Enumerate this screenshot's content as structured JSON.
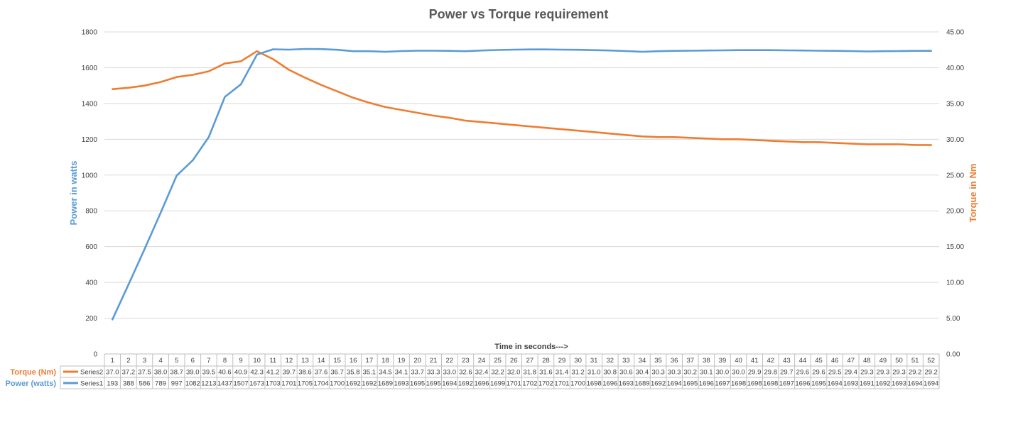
{
  "chart_data": {
    "type": "line",
    "title": "Power vs Torque requirement",
    "xlabel": "Time in seconds--->",
    "ylabel_left": "Power in watts",
    "ylabel_right": "Torque in Nm",
    "y_left_lim": [
      0,
      1800
    ],
    "y_right_lim": [
      0,
      45
    ],
    "y_left_ticks": [
      "0",
      "200",
      "400",
      "600",
      "800",
      "1000",
      "1200",
      "1400",
      "1600",
      "1800"
    ],
    "y_right_ticks": [
      "0.00",
      "5.00",
      "10.00",
      "15.00",
      "20.00",
      "25.00",
      "30.00",
      "35.00",
      "40.00",
      "45.00"
    ],
    "grid": true,
    "legend": "data-table",
    "categories": [
      "1",
      "2",
      "3",
      "4",
      "5",
      "6",
      "7",
      "8",
      "9",
      "10",
      "11",
      "12",
      "13",
      "14",
      "15",
      "16",
      "17",
      "18",
      "19",
      "20",
      "21",
      "22",
      "23",
      "24",
      "25",
      "26",
      "27",
      "28",
      "29",
      "30",
      "31",
      "32",
      "33",
      "34",
      "35",
      "36",
      "37",
      "38",
      "39",
      "40",
      "41",
      "42",
      "43",
      "44",
      "45",
      "46",
      "47",
      "48",
      "49",
      "50",
      "51",
      "52"
    ],
    "series": [
      {
        "name": "Series2",
        "row_label": "Torque (Nm)",
        "axis": "right",
        "color": "#ed7d31",
        "values": [
          37.0,
          37.2,
          37.5,
          38.0,
          38.7,
          39.0,
          39.5,
          40.6,
          40.9,
          42.3,
          41.2,
          39.7,
          38.6,
          37.6,
          36.7,
          35.8,
          35.1,
          34.5,
          34.1,
          33.7,
          33.3,
          33.0,
          32.6,
          32.4,
          32.2,
          32.0,
          31.8,
          31.6,
          31.4,
          31.2,
          31.0,
          30.8,
          30.6,
          30.4,
          30.3,
          30.3,
          30.2,
          30.1,
          30.0,
          30.0,
          29.9,
          29.8,
          29.7,
          29.6,
          29.6,
          29.5,
          29.4,
          29.3,
          29.3,
          29.3,
          29.2,
          29.2
        ],
        "labels": [
          "37.0",
          "37.2",
          "37.5",
          "38.0",
          "38.7",
          "39.0",
          "39.5",
          "40.6",
          "40.9",
          "42.3",
          "41.2",
          "39.7",
          "38.6",
          "37.6",
          "36.7",
          "35.8",
          "35.1",
          "34.5",
          "34.1",
          "33.7",
          "33.3",
          "33.0",
          "32.6",
          "32.4",
          "32.2",
          "32.0",
          "31.8",
          "31.6",
          "31.4",
          "31.2",
          "31.0",
          "30.8",
          "30.6",
          "30.4",
          "30.3",
          "30.3",
          "30.2",
          "30.1",
          "30.0",
          "30.0",
          "29.9",
          "29.8",
          "29.7",
          "29.6",
          "29.6",
          "29.5",
          "29.4",
          "29.3",
          "29.3",
          "29.3",
          "29.2",
          "29.2"
        ]
      },
      {
        "name": "Series1",
        "row_label": "Power (watts)",
        "axis": "left",
        "color": "#5b9bd5",
        "values": [
          193,
          388,
          586,
          789,
          997,
          1082,
          1213,
          1437,
          1507,
          1673,
          1703,
          1701,
          1705,
          1704,
          1700,
          1692,
          1692,
          1689,
          1693,
          1695,
          1695,
          1694,
          1692,
          1696,
          1699,
          1701,
          1702,
          1702,
          1701,
          1700,
          1698,
          1696,
          1693,
          1689,
          1692,
          1694,
          1695,
          1696,
          1697,
          1698,
          1698,
          1698,
          1697,
          1696,
          1695,
          1694,
          1693,
          1691,
          1692,
          1693,
          1694,
          1694
        ],
        "labels": [
          "193",
          "388",
          "586",
          "789",
          "997",
          "1082",
          "1213",
          "1437",
          "1507",
          "1673",
          "1703",
          "1701",
          "1705",
          "1704",
          "1700",
          "1692",
          "1692",
          "1689",
          "1693",
          "1695",
          "1695",
          "1694",
          "1692",
          "1696",
          "1699",
          "1701",
          "1702",
          "1702",
          "1701",
          "1700",
          "1698",
          "1696",
          "1693",
          "1689",
          "1692",
          "1694",
          "1695",
          "1696",
          "1697",
          "1698",
          "1698",
          "1698",
          "1697",
          "1696",
          "1695",
          "1694",
          "1693",
          "1691",
          "1692",
          "1693",
          "1694",
          "1694"
        ]
      }
    ]
  }
}
